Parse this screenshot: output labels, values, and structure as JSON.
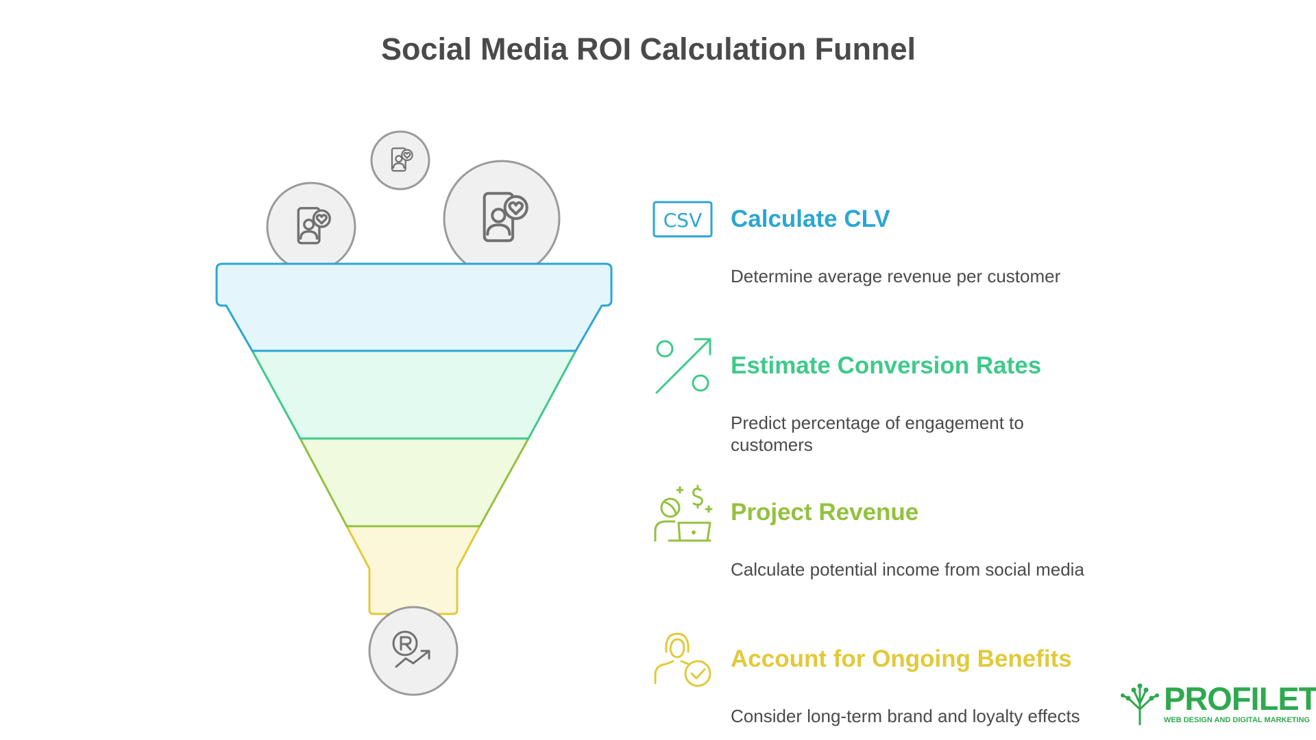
{
  "title": "Social Media ROI Calculation Funnel",
  "steps": [
    {
      "heading": "Calculate CLV",
      "description": "Determine average revenue per customer",
      "color": "#2ba6d3",
      "icon": "csv-file-icon"
    },
    {
      "heading": "Estimate Conversion Rates",
      "description": "Predict percentage of engagement to customers",
      "color": "#3ec98a",
      "icon": "percent-icon"
    },
    {
      "heading": "Project Revenue",
      "description": "Calculate potential income from social media",
      "color": "#93c13e",
      "icon": "revenue-person-laptop-icon"
    },
    {
      "heading": "Account for Ongoing Benefits",
      "description": "Consider long-term brand and loyalty effects",
      "color": "#e2c93a",
      "icon": "person-check-icon"
    }
  ],
  "funnel": {
    "layer_fills": [
      "#e4f6fb",
      "#e3faf0",
      "#f0fadf",
      "#fdf7da"
    ],
    "layer_strokes": [
      "#2ba6d3",
      "#3ec98a",
      "#93c13e",
      "#e2c93a"
    ],
    "input_icons": [
      "phone-heart-icon",
      "phone-heart-icon",
      "phone-heart-icon"
    ],
    "output_icon": "registered-growth-icon"
  },
  "csv_label": "CSV",
  "logo": {
    "name": "PROFILETREE",
    "tagline": "WEB DESIGN AND DIGITAL MARKETING",
    "color": "#2fa84f"
  }
}
